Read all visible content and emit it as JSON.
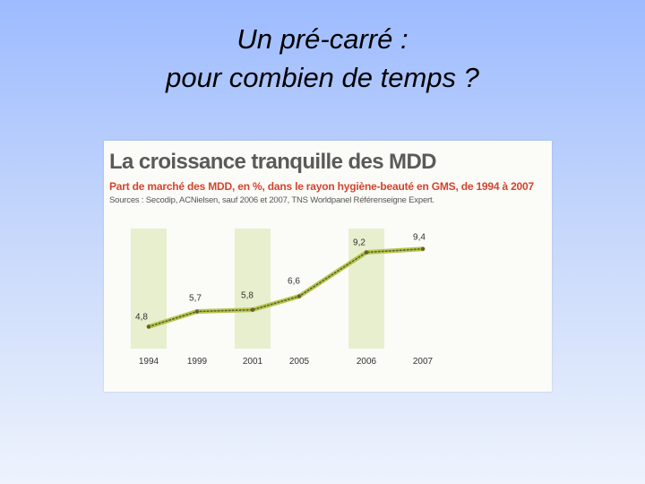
{
  "slide": {
    "title_line1": "Un pré-carré :",
    "title_line2": "pour combien de temps ?"
  },
  "chart_data": {
    "type": "line",
    "title": "La croissance tranquille des MDD",
    "subtitle": "Part de marché des MDD, en %, dans le rayon hygiène-beauté en GMS, de 1994 à 2007",
    "source": "Sources : Secodip, ACNielsen, sauf 2006 et 2007, TNS Worldpanel Référenseigne Expert.",
    "categories": [
      "1994",
      "1999",
      "2001",
      "2005",
      "2006",
      "2007"
    ],
    "values": [
      4.8,
      5.7,
      5.8,
      6.6,
      9.2,
      9.4
    ],
    "value_labels": [
      "4,8",
      "5,7",
      "5,8",
      "6,6",
      "9,2",
      "9,4"
    ],
    "ylim": [
      3.5,
      10.5
    ],
    "grid": false,
    "shaded_columns": [
      "1994",
      "2001",
      "2006"
    ],
    "colors": {
      "line": "#b3c94a",
      "dots": "#6a5a3a",
      "band": "#e7efcf",
      "labels": "#333333"
    }
  }
}
